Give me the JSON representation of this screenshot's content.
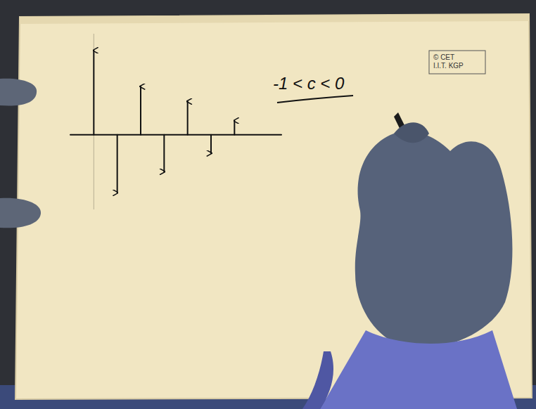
{
  "chart_data": {
    "type": "stem",
    "x": [
      0,
      1,
      2,
      3,
      4,
      5,
      6
    ],
    "values": [
      0.96,
      -0.66,
      0.55,
      -0.42,
      0.38,
      -0.21,
      0.16
    ],
    "xlim": [
      -1,
      8
    ],
    "ylim": [
      -0.85,
      1.15
    ],
    "tick_labels": false,
    "marker": "arrow",
    "color": "#111111",
    "annotations": [
      "-1 < c < 0"
    ]
  },
  "credit": [
    "© CET",
    "I.I.T. KGP"
  ]
}
